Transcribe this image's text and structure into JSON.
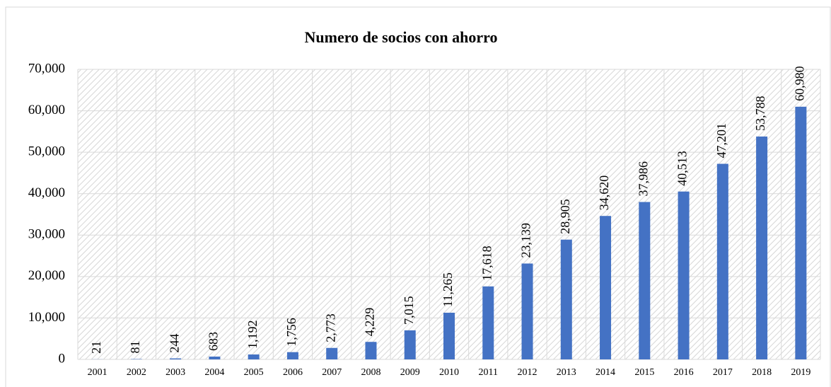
{
  "chart_data": {
    "type": "bar",
    "title": "Numero de socios con ahorro",
    "categories": [
      "2001",
      "2002",
      "2003",
      "2004",
      "2005",
      "2006",
      "2007",
      "2008",
      "2009",
      "2010",
      "2011",
      "2012",
      "2013",
      "2014",
      "2015",
      "2016",
      "2017",
      "2018",
      "2019"
    ],
    "values": [
      21,
      81,
      244,
      683,
      1192,
      1756,
      2773,
      4229,
      7015,
      11265,
      17618,
      23139,
      28905,
      34620,
      37986,
      40513,
      47201,
      53788,
      60980
    ],
    "value_labels": [
      "21",
      "81",
      "244",
      "683",
      "1,192",
      "1,756",
      "2,773",
      "4,229",
      "7,015",
      "11,265",
      "17,618",
      "23,139",
      "28,905",
      "34,620",
      "37,986",
      "40,513",
      "47,201",
      "53,788",
      "60,980"
    ],
    "color": "#4472c4",
    "ylim": [
      0,
      70000
    ],
    "yticks": [
      0,
      {
        "value": 10000,
        "label": "10,000"
      },
      {
        "value": 20000,
        "label": "20,000"
      },
      {
        "value": 30000,
        "label": "30,000"
      },
      {
        "value": 40000,
        "label": "40,000"
      },
      {
        "value": 50000,
        "label": "50,000"
      },
      {
        "value": 60000,
        "label": "60,000"
      },
      {
        "value": 70000,
        "label": "70,000"
      }
    ],
    "grid": true
  }
}
